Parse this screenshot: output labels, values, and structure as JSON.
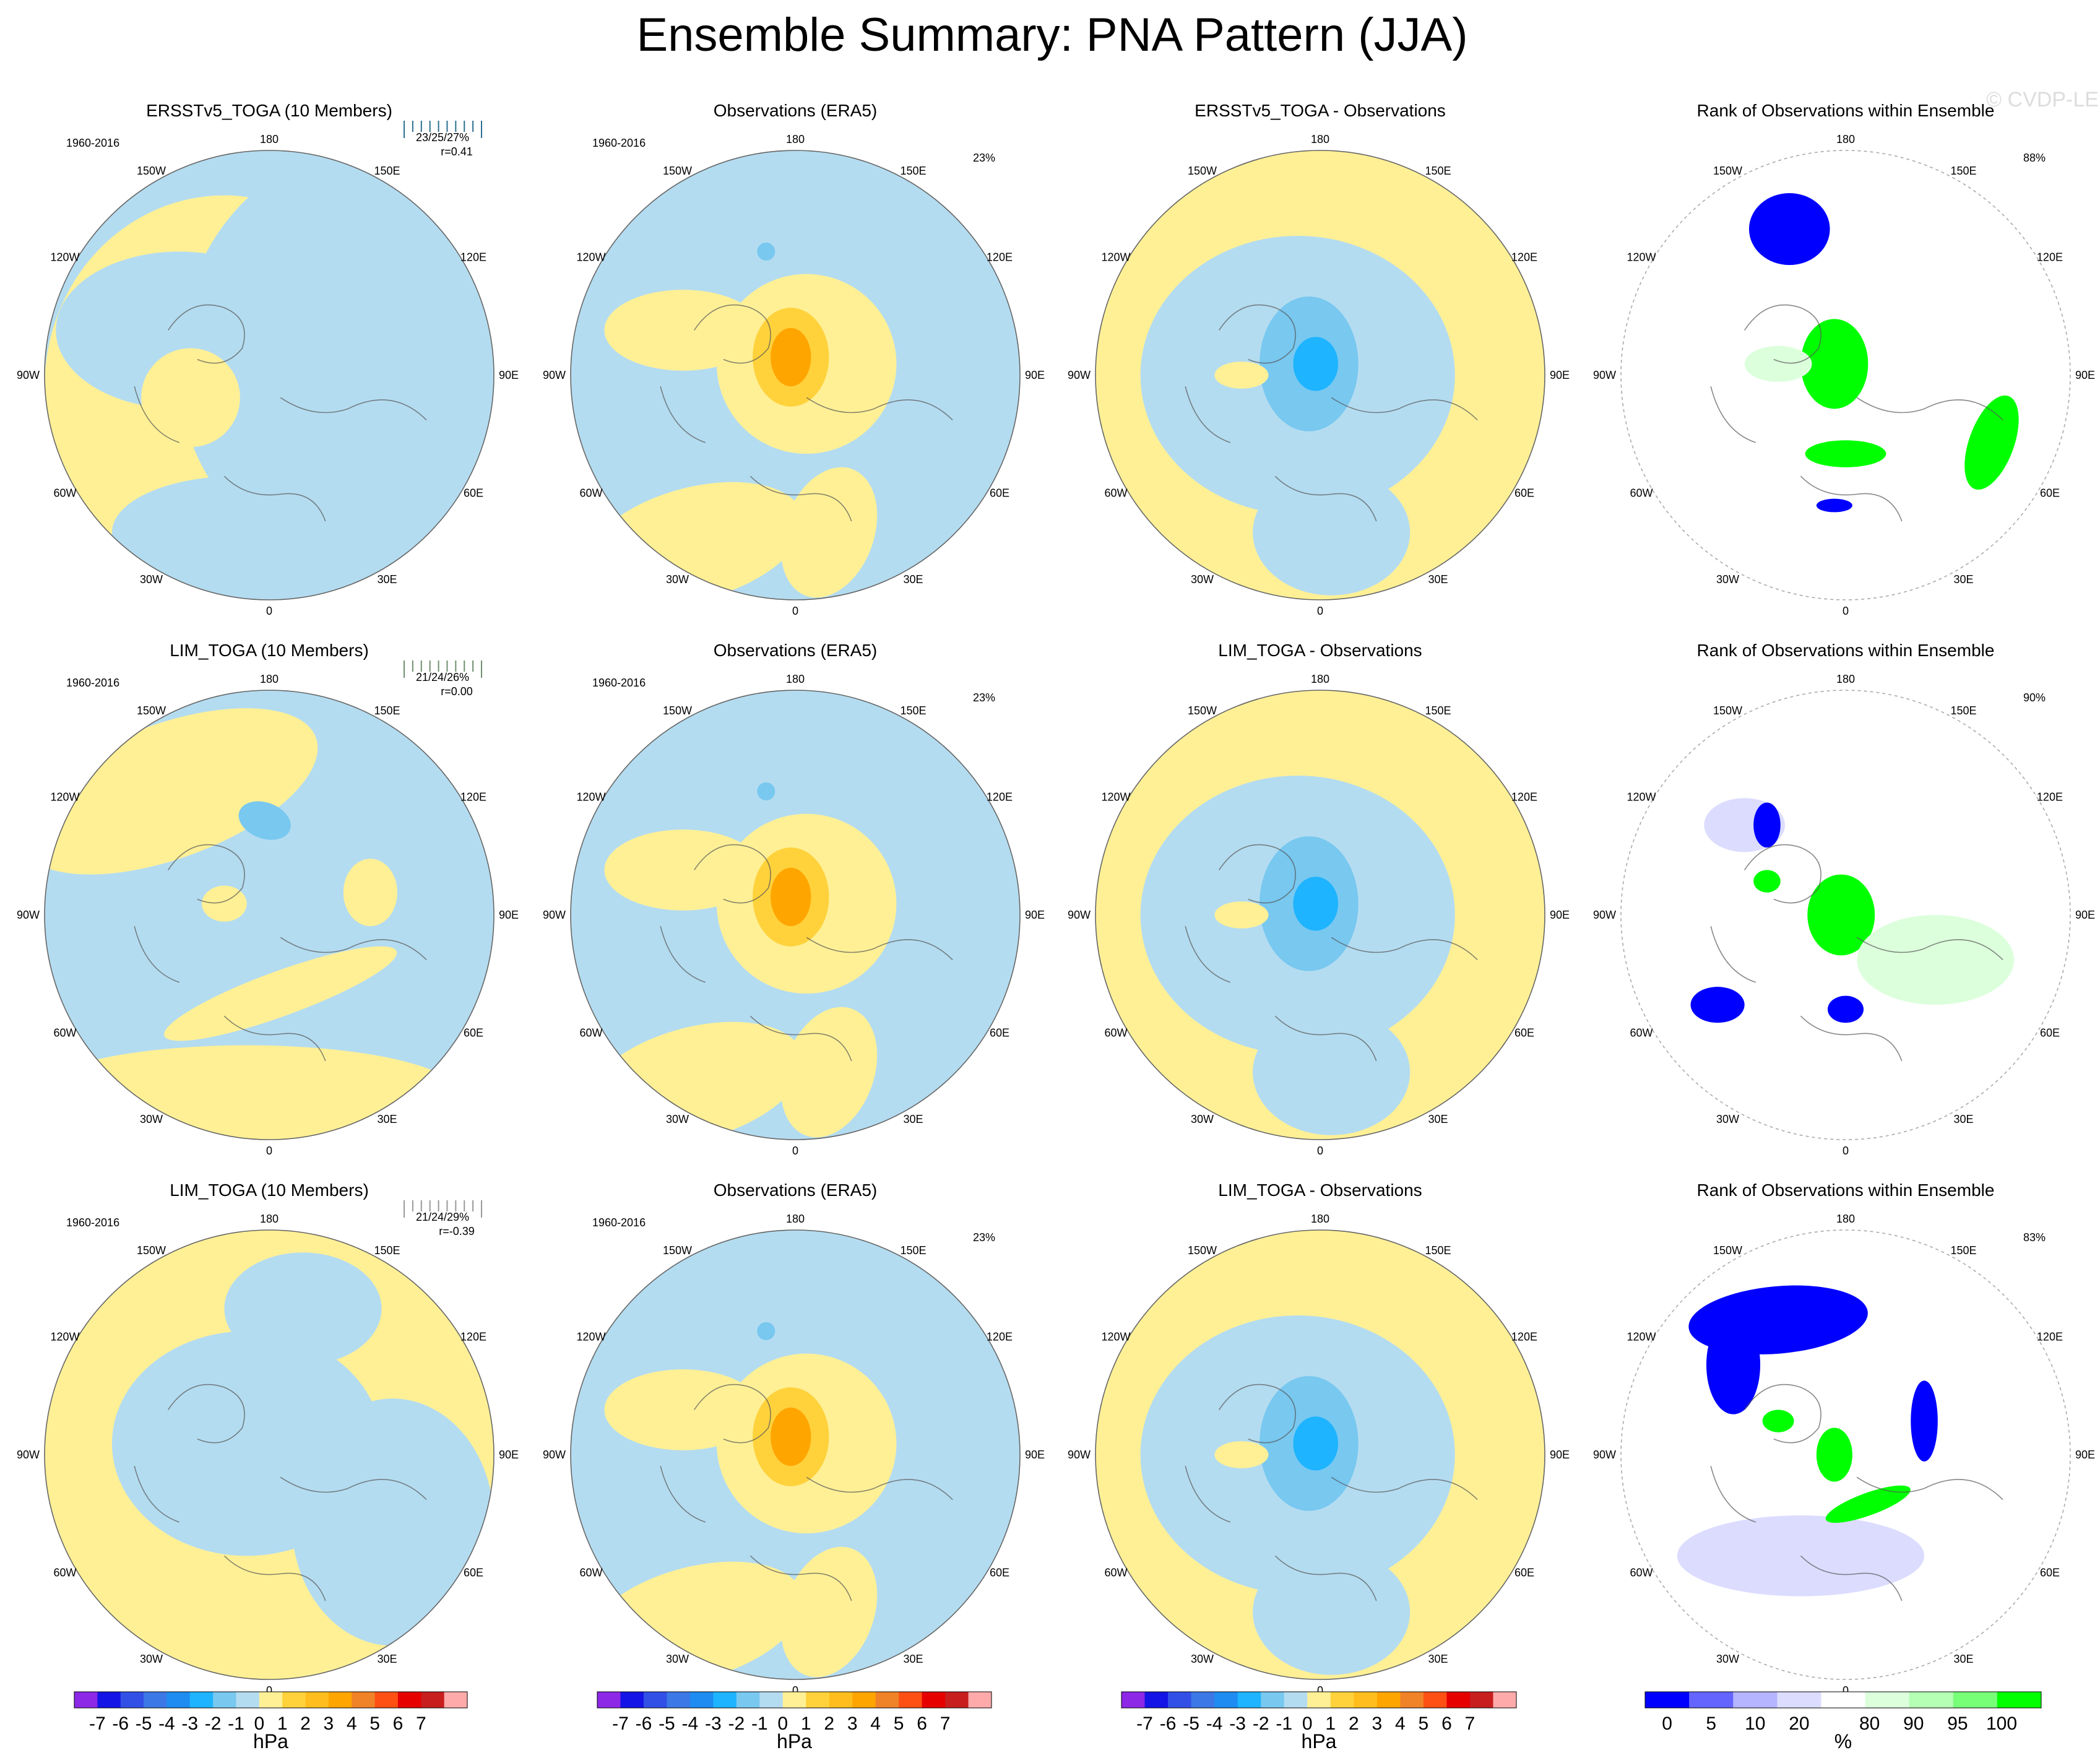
{
  "title": "Ensemble Summary: PNA Pattern (JJA)",
  "watermark": "© CVDP-LE",
  "colors": {
    "neg1": "#b4dcf0",
    "neg2": "#78c8f0",
    "neg3": "#1eb4ff",
    "neg4": "#1e8cf0",
    "pos1": "#fff096",
    "pos2": "#ffd23c",
    "pos3": "#ffa500",
    "pos4": "#f08228",
    "rank_blue": "#0000ff",
    "rank_lav": "#dcdcff",
    "rank_lgreen": "#dcffdc",
    "rank_green": "#00ff00",
    "title_ersst": "#2a6f8f",
    "title_lim1": "#6f8f6f",
    "title_lim2": "#999999"
  },
  "period": "1960-2016",
  "longitude_labels": [
    "180",
    "150E",
    "120E",
    "90E",
    "60E",
    "30E",
    "0",
    "30W",
    "60W",
    "90W",
    "120W",
    "150W"
  ],
  "rows": [
    {
      "panels": [
        {
          "kind": "model",
          "title": "ERSSTv5_TOGA (10 Members)",
          "stats_pct": "23/25/27%",
          "stats_r": "r=0.41"
        },
        {
          "kind": "obs",
          "title": "Observations (ERA5)",
          "pct": "23%"
        },
        {
          "kind": "diff",
          "title": "ERSSTv5_TOGA - Observations"
        },
        {
          "kind": "rank",
          "title": "Rank of Observations within Ensemble",
          "pct": "88%"
        }
      ]
    },
    {
      "panels": [
        {
          "kind": "model",
          "title": "LIM_TOGA (10 Members)",
          "stats_pct": "21/24/26%",
          "stats_r": "r=0.00"
        },
        {
          "kind": "obs",
          "title": "Observations (ERA5)",
          "pct": "23%"
        },
        {
          "kind": "diff",
          "title": "LIM_TOGA - Observations"
        },
        {
          "kind": "rank",
          "title": "Rank of Observations within Ensemble",
          "pct": "90%"
        }
      ]
    },
    {
      "panels": [
        {
          "kind": "model",
          "title": "LIM_TOGA (10 Members)",
          "stats_pct": "21/24/29%",
          "stats_r": "r=-0.39"
        },
        {
          "kind": "obs",
          "title": "Observations (ERA5)",
          "pct": "23%"
        },
        {
          "kind": "diff",
          "title": "LIM_TOGA - Observations"
        },
        {
          "kind": "rank",
          "title": "Rank of Observations within Ensemble",
          "pct": "83%"
        }
      ]
    }
  ],
  "chart_data": [
    {
      "type": "heatmap",
      "title": "Ensemble Summary: PNA Pattern (JJA)",
      "description_projection": "Northern Hemisphere polar stereographic",
      "colorbar": {
        "units": "hPa",
        "levels": [
          -7,
          -6,
          -5,
          -4,
          -3,
          -2,
          -1,
          0,
          1,
          2,
          3,
          4,
          5,
          6,
          7
        ],
        "tick_labels": [
          "-7",
          "-6",
          "-5",
          "-4",
          "-3",
          "-2",
          "-1",
          "0",
          "1",
          "2",
          "3",
          "4",
          "5",
          "6",
          "7"
        ],
        "colors": [
          "#8c28e6",
          "#1414e6",
          "#3250e6",
          "#3c78e6",
          "#1e8cf0",
          "#1eb4ff",
          "#78c8f0",
          "#b4dcf0",
          "#fff096",
          "#ffd23c",
          "#ffbe1e",
          "#ffa500",
          "#f08228",
          "#ff5014",
          "#e60000",
          "#c81e1e",
          "#ffaaaa"
        ]
      },
      "rank_colorbar": {
        "units": "%",
        "tick_labels": [
          "0",
          "5",
          "10",
          "20",
          "80",
          "90",
          "95",
          "100"
        ],
        "colors": [
          "#0000ff",
          "#6464ff",
          "#b4b4ff",
          "#dcdcff",
          "#ffffff",
          "#dcffdc",
          "#b4ffb4",
          "#78ff78",
          "#00ff00"
        ]
      },
      "pattern_correlation_r": [
        0.41,
        0.0,
        -0.39
      ],
      "rank_percent_within_range": [
        88,
        90,
        83
      ],
      "pct_variance_explained_obs": 23
    }
  ],
  "colorbars": [
    {
      "unit": "hPa",
      "labels": [
        "-7",
        "-6",
        "-5",
        "-4",
        "-3",
        "-2",
        "-1",
        "0",
        "1",
        "2",
        "3",
        "4",
        "5",
        "6",
        "7"
      ]
    },
    {
      "unit": "hPa",
      "labels": [
        "-7",
        "-6",
        "-5",
        "-4",
        "-3",
        "-2",
        "-1",
        "0",
        "1",
        "2",
        "3",
        "4",
        "5",
        "6",
        "7"
      ]
    },
    {
      "unit": "hPa",
      "labels": [
        "-7",
        "-6",
        "-5",
        "-4",
        "-3",
        "-2",
        "-1",
        "0",
        "1",
        "2",
        "3",
        "4",
        "5",
        "6",
        "7"
      ]
    },
    {
      "unit": "%",
      "labels": [
        "0",
        "5",
        "10",
        "20",
        "80",
        "90",
        "95",
        "100"
      ]
    }
  ]
}
